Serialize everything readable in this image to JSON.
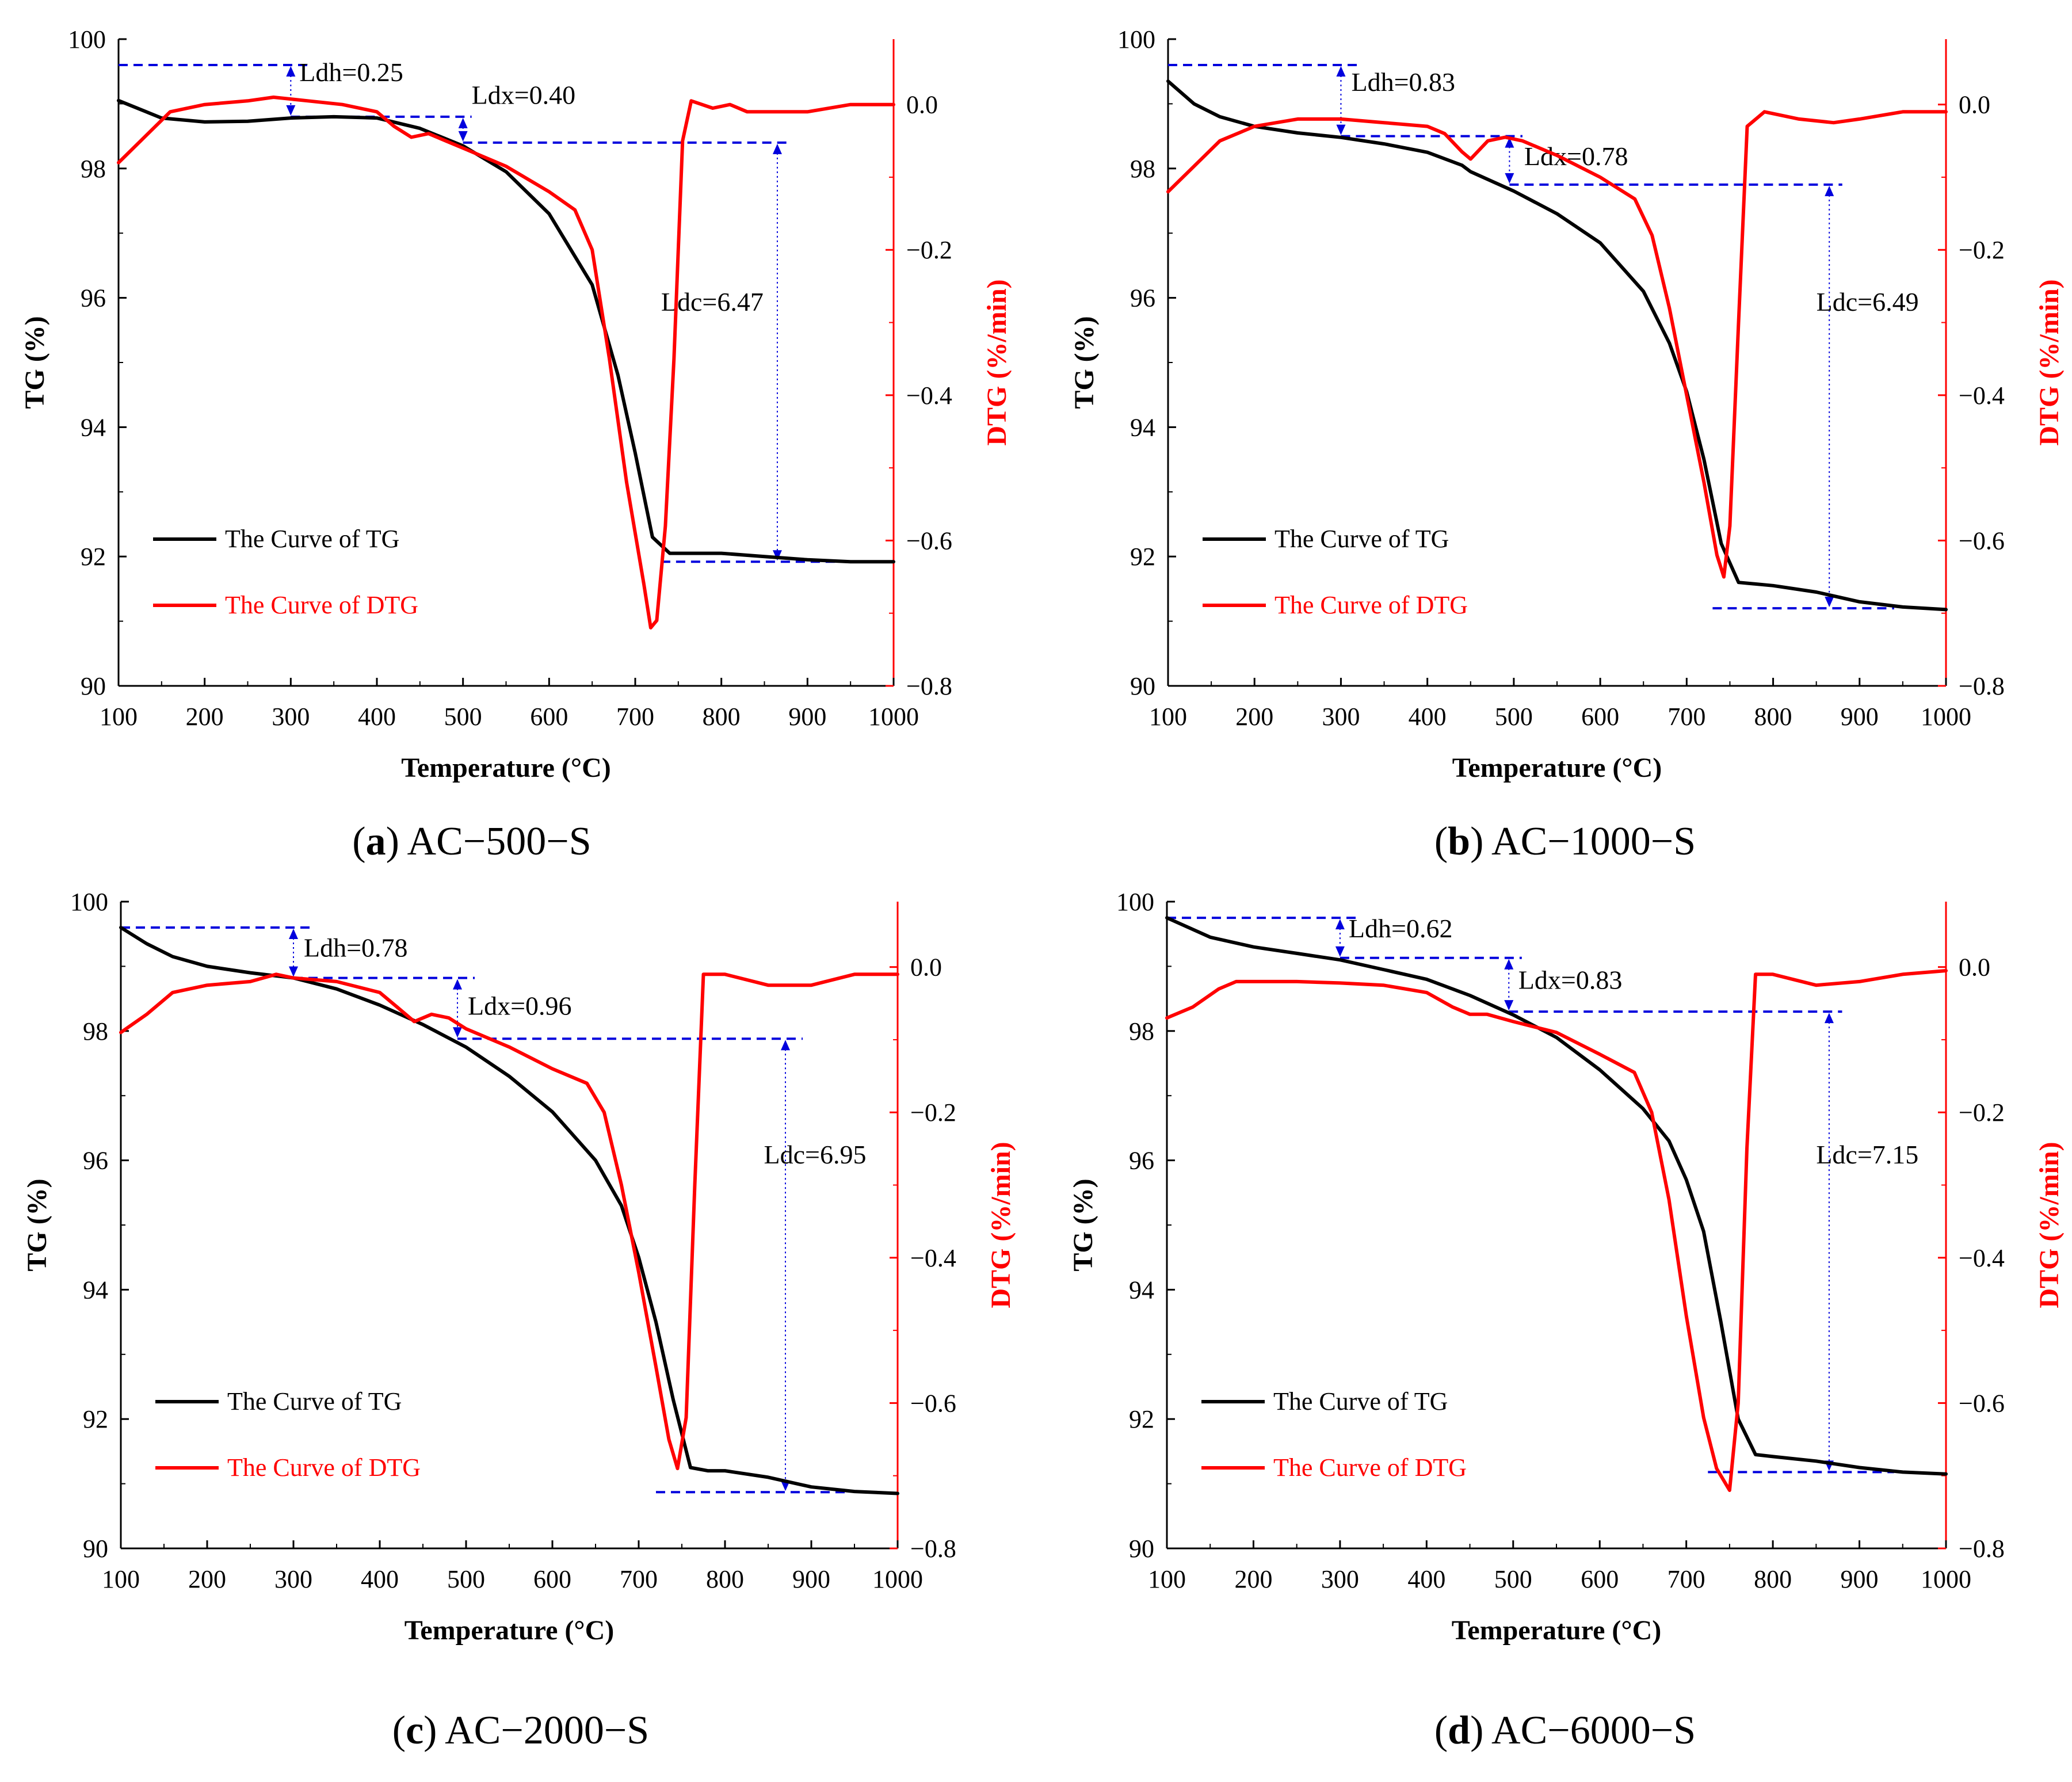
{
  "colors": {
    "tg": "#000000",
    "dtg": "#ff0000",
    "annotation": "#0000dd"
  },
  "chart_data": [
    {
      "type": "line",
      "caption": {
        "letter": "a",
        "sample": "AC−500−S"
      },
      "xlabel": "Temperature (°C)",
      "ylabel_left": "TG (%)",
      "ylabel_right": "DTG (%/min)",
      "xlim": [
        100,
        1000
      ],
      "ylim_left": [
        90,
        100
      ],
      "ylim_right": [
        -0.8,
        0.09
      ],
      "xticks": [
        "100",
        "200",
        "300",
        "400",
        "500",
        "600",
        "700",
        "800",
        "900",
        "1000"
      ],
      "yticks_left": [
        "90",
        "92",
        "94",
        "96",
        "98",
        "100"
      ],
      "yticks_right": [
        "−0.8",
        "−0.6",
        "−0.4",
        "−0.2",
        "0.0"
      ],
      "legend": {
        "tg_label": "The Curve of TG",
        "dtg_label": "The Curve of DTG",
        "position": "lower-left"
      },
      "annotations": {
        "ldh": "Ldh=0.25",
        "ldx": "Ldx=0.40",
        "ldc": "Ldc=6.47"
      },
      "series": [
        {
          "name": "The Curve of TG",
          "axis": "left",
          "x": [
            100,
            150,
            200,
            250,
            300,
            350,
            400,
            450,
            500,
            550,
            600,
            650,
            680,
            700,
            720,
            740,
            760,
            800,
            850,
            900,
            950,
            1000
          ],
          "y": [
            99.05,
            98.78,
            98.72,
            98.73,
            98.78,
            98.8,
            98.78,
            98.62,
            98.35,
            97.95,
            97.3,
            96.2,
            94.8,
            93.6,
            92.3,
            92.05,
            92.05,
            92.05,
            92.0,
            91.95,
            91.92,
            91.92
          ]
        },
        {
          "name": "The Curve of DTG",
          "axis": "right",
          "x": [
            100,
            130,
            160,
            200,
            250,
            280,
            320,
            360,
            400,
            420,
            440,
            460,
            480,
            500,
            550,
            600,
            630,
            650,
            670,
            690,
            710,
            718,
            725,
            735,
            745,
            755,
            765,
            790,
            810,
            830,
            860,
            900,
            950,
            1000
          ],
          "y": [
            -0.08,
            -0.045,
            -0.01,
            0.0,
            0.005,
            0.01,
            0.005,
            0.0,
            -0.01,
            -0.03,
            -0.045,
            -0.04,
            -0.05,
            -0.06,
            -0.085,
            -0.12,
            -0.145,
            -0.2,
            -0.35,
            -0.52,
            -0.66,
            -0.72,
            -0.71,
            -0.58,
            -0.35,
            -0.05,
            0.005,
            -0.005,
            0.0,
            -0.01,
            -0.01,
            -0.01,
            0.0,
            0.0
          ]
        }
      ]
    },
    {
      "type": "line",
      "caption": {
        "letter": "b",
        "sample": "AC−1000−S"
      },
      "xlabel": "Temperature (°C)",
      "ylabel_left": "TG (%)",
      "ylabel_right": "DTG (%/min)",
      "xlim": [
        100,
        1000
      ],
      "ylim_left": [
        90,
        100
      ],
      "ylim_right": [
        -0.8,
        0.09
      ],
      "xticks": [
        "100",
        "200",
        "300",
        "400",
        "500",
        "600",
        "700",
        "800",
        "900",
        "1000"
      ],
      "yticks_left": [
        "90",
        "92",
        "94",
        "96",
        "98",
        "100"
      ],
      "yticks_right": [
        "−0.8",
        "−0.6",
        "−0.4",
        "−0.2",
        "0.0"
      ],
      "legend": {
        "tg_label": "The Curve of TG",
        "dtg_label": "The Curve of DTG",
        "position": "lower-left"
      },
      "annotations": {
        "ldh": "Ldh=0.83",
        "ldx": "Ldx=0.78",
        "ldc": "Ldc=6.49"
      },
      "series": [
        {
          "name": "The Curve of TG",
          "axis": "left",
          "x": [
            100,
            130,
            160,
            200,
            250,
            300,
            350,
            400,
            440,
            450,
            500,
            550,
            600,
            650,
            680,
            700,
            720,
            740,
            760,
            800,
            850,
            900,
            950,
            1000
          ],
          "y": [
            99.35,
            99.0,
            98.8,
            98.65,
            98.55,
            98.48,
            98.38,
            98.25,
            98.05,
            97.95,
            97.65,
            97.3,
            96.85,
            96.1,
            95.3,
            94.55,
            93.5,
            92.2,
            91.6,
            91.55,
            91.45,
            91.3,
            91.22,
            91.18
          ]
        },
        {
          "name": "The Curve of DTG",
          "axis": "right",
          "x": [
            100,
            130,
            160,
            200,
            250,
            300,
            350,
            400,
            420,
            440,
            450,
            470,
            490,
            510,
            550,
            600,
            640,
            660,
            680,
            700,
            720,
            735,
            743,
            750,
            760,
            770,
            790,
            830,
            870,
            900,
            950,
            1000
          ],
          "y": [
            -0.12,
            -0.085,
            -0.05,
            -0.03,
            -0.02,
            -0.02,
            -0.025,
            -0.03,
            -0.04,
            -0.065,
            -0.075,
            -0.05,
            -0.045,
            -0.05,
            -0.07,
            -0.1,
            -0.13,
            -0.18,
            -0.28,
            -0.4,
            -0.52,
            -0.62,
            -0.65,
            -0.58,
            -0.3,
            -0.03,
            -0.01,
            -0.02,
            -0.025,
            -0.02,
            -0.01,
            -0.01
          ]
        }
      ]
    },
    {
      "type": "line",
      "caption": {
        "letter": "c",
        "sample": "AC−2000−S"
      },
      "xlabel": "Temperature (°C)",
      "ylabel_left": "TG (%)",
      "ylabel_right": "DTG (%/min)",
      "xlim": [
        100,
        1000
      ],
      "ylim_left": [
        90,
        100
      ],
      "ylim_right": [
        -0.8,
        0.09
      ],
      "xticks": [
        "100",
        "200",
        "300",
        "400",
        "500",
        "600",
        "700",
        "800",
        "900",
        "1000"
      ],
      "yticks_left": [
        "90",
        "92",
        "94",
        "96",
        "98",
        "100"
      ],
      "yticks_right": [
        "−0.8",
        "−0.6",
        "−0.4",
        "−0.2",
        "0.0"
      ],
      "legend": {
        "tg_label": "The Curve of TG",
        "dtg_label": "The Curve of DTG",
        "position": "lower-left"
      },
      "annotations": {
        "ldh": "Ldh=0.78",
        "ldx": "Ldx=0.96",
        "ldc": "Ldc=6.95"
      },
      "series": [
        {
          "name": "The Curve of TG",
          "axis": "left",
          "x": [
            100,
            130,
            160,
            200,
            250,
            300,
            350,
            400,
            450,
            500,
            550,
            600,
            650,
            680,
            700,
            720,
            740,
            760,
            780,
            800,
            850,
            900,
            950,
            1000
          ],
          "y": [
            99.6,
            99.35,
            99.15,
            99.0,
            98.9,
            98.82,
            98.65,
            98.4,
            98.1,
            97.75,
            97.3,
            96.75,
            96.0,
            95.3,
            94.5,
            93.5,
            92.3,
            91.25,
            91.2,
            91.2,
            91.1,
            90.95,
            90.88,
            90.85
          ]
        },
        {
          "name": "The Curve of DTG",
          "axis": "right",
          "x": [
            100,
            130,
            160,
            200,
            250,
            280,
            300,
            350,
            400,
            420,
            440,
            460,
            480,
            500,
            550,
            600,
            640,
            660,
            680,
            700,
            720,
            735,
            745,
            755,
            765,
            775,
            800,
            850,
            900,
            950,
            1000
          ],
          "y": [
            -0.09,
            -0.065,
            -0.035,
            -0.025,
            -0.02,
            -0.01,
            -0.015,
            -0.02,
            -0.035,
            -0.055,
            -0.075,
            -0.065,
            -0.07,
            -0.085,
            -0.11,
            -0.14,
            -0.16,
            -0.2,
            -0.3,
            -0.42,
            -0.55,
            -0.65,
            -0.69,
            -0.62,
            -0.3,
            -0.01,
            -0.01,
            -0.025,
            -0.025,
            -0.01,
            -0.01
          ]
        }
      ]
    },
    {
      "type": "line",
      "caption": {
        "letter": "d",
        "sample": "AC−6000−S"
      },
      "xlabel": "Temperature (°C)",
      "ylabel_left": "TG (%)",
      "ylabel_right": "DTG (%/min)",
      "xlim": [
        100,
        1000
      ],
      "ylim_left": [
        90,
        100
      ],
      "ylim_right": [
        -0.8,
        0.09
      ],
      "xticks": [
        "100",
        "200",
        "300",
        "400",
        "500",
        "600",
        "700",
        "800",
        "900",
        "1000"
      ],
      "yticks_left": [
        "90",
        "92",
        "94",
        "96",
        "98",
        "100"
      ],
      "yticks_right": [
        "−0.8",
        "−0.6",
        "−0.4",
        "−0.2",
        "0.0"
      ],
      "legend": {
        "tg_label": "The Curve of TG",
        "dtg_label": "The Curve of DTG",
        "position": "lower-left"
      },
      "annotations": {
        "ldh": "Ldh=0.62",
        "ldx": "Ldx=0.83",
        "ldc": "Ldc=7.15"
      },
      "series": [
        {
          "name": "The Curve of TG",
          "axis": "left",
          "x": [
            100,
            150,
            200,
            250,
            300,
            350,
            400,
            450,
            500,
            550,
            600,
            650,
            680,
            700,
            720,
            740,
            760,
            780,
            800,
            850,
            900,
            950,
            1000
          ],
          "y": [
            99.75,
            99.45,
            99.3,
            99.2,
            99.1,
            98.95,
            98.8,
            98.55,
            98.25,
            97.9,
            97.4,
            96.8,
            96.3,
            95.7,
            94.9,
            93.5,
            92.0,
            91.45,
            91.42,
            91.35,
            91.25,
            91.18,
            91.15
          ]
        },
        {
          "name": "The Curve of DTG",
          "axis": "right",
          "x": [
            100,
            130,
            160,
            180,
            250,
            300,
            350,
            400,
            430,
            450,
            470,
            500,
            550,
            600,
            640,
            660,
            680,
            700,
            720,
            735,
            750,
            760,
            770,
            780,
            800,
            850,
            900,
            950,
            1000
          ],
          "y": [
            -0.07,
            -0.055,
            -0.03,
            -0.02,
            -0.02,
            -0.022,
            -0.025,
            -0.035,
            -0.055,
            -0.065,
            -0.065,
            -0.075,
            -0.09,
            -0.12,
            -0.145,
            -0.2,
            -0.32,
            -0.48,
            -0.62,
            -0.69,
            -0.72,
            -0.6,
            -0.25,
            -0.01,
            -0.01,
            -0.025,
            -0.02,
            -0.01,
            -0.005
          ]
        }
      ]
    }
  ]
}
